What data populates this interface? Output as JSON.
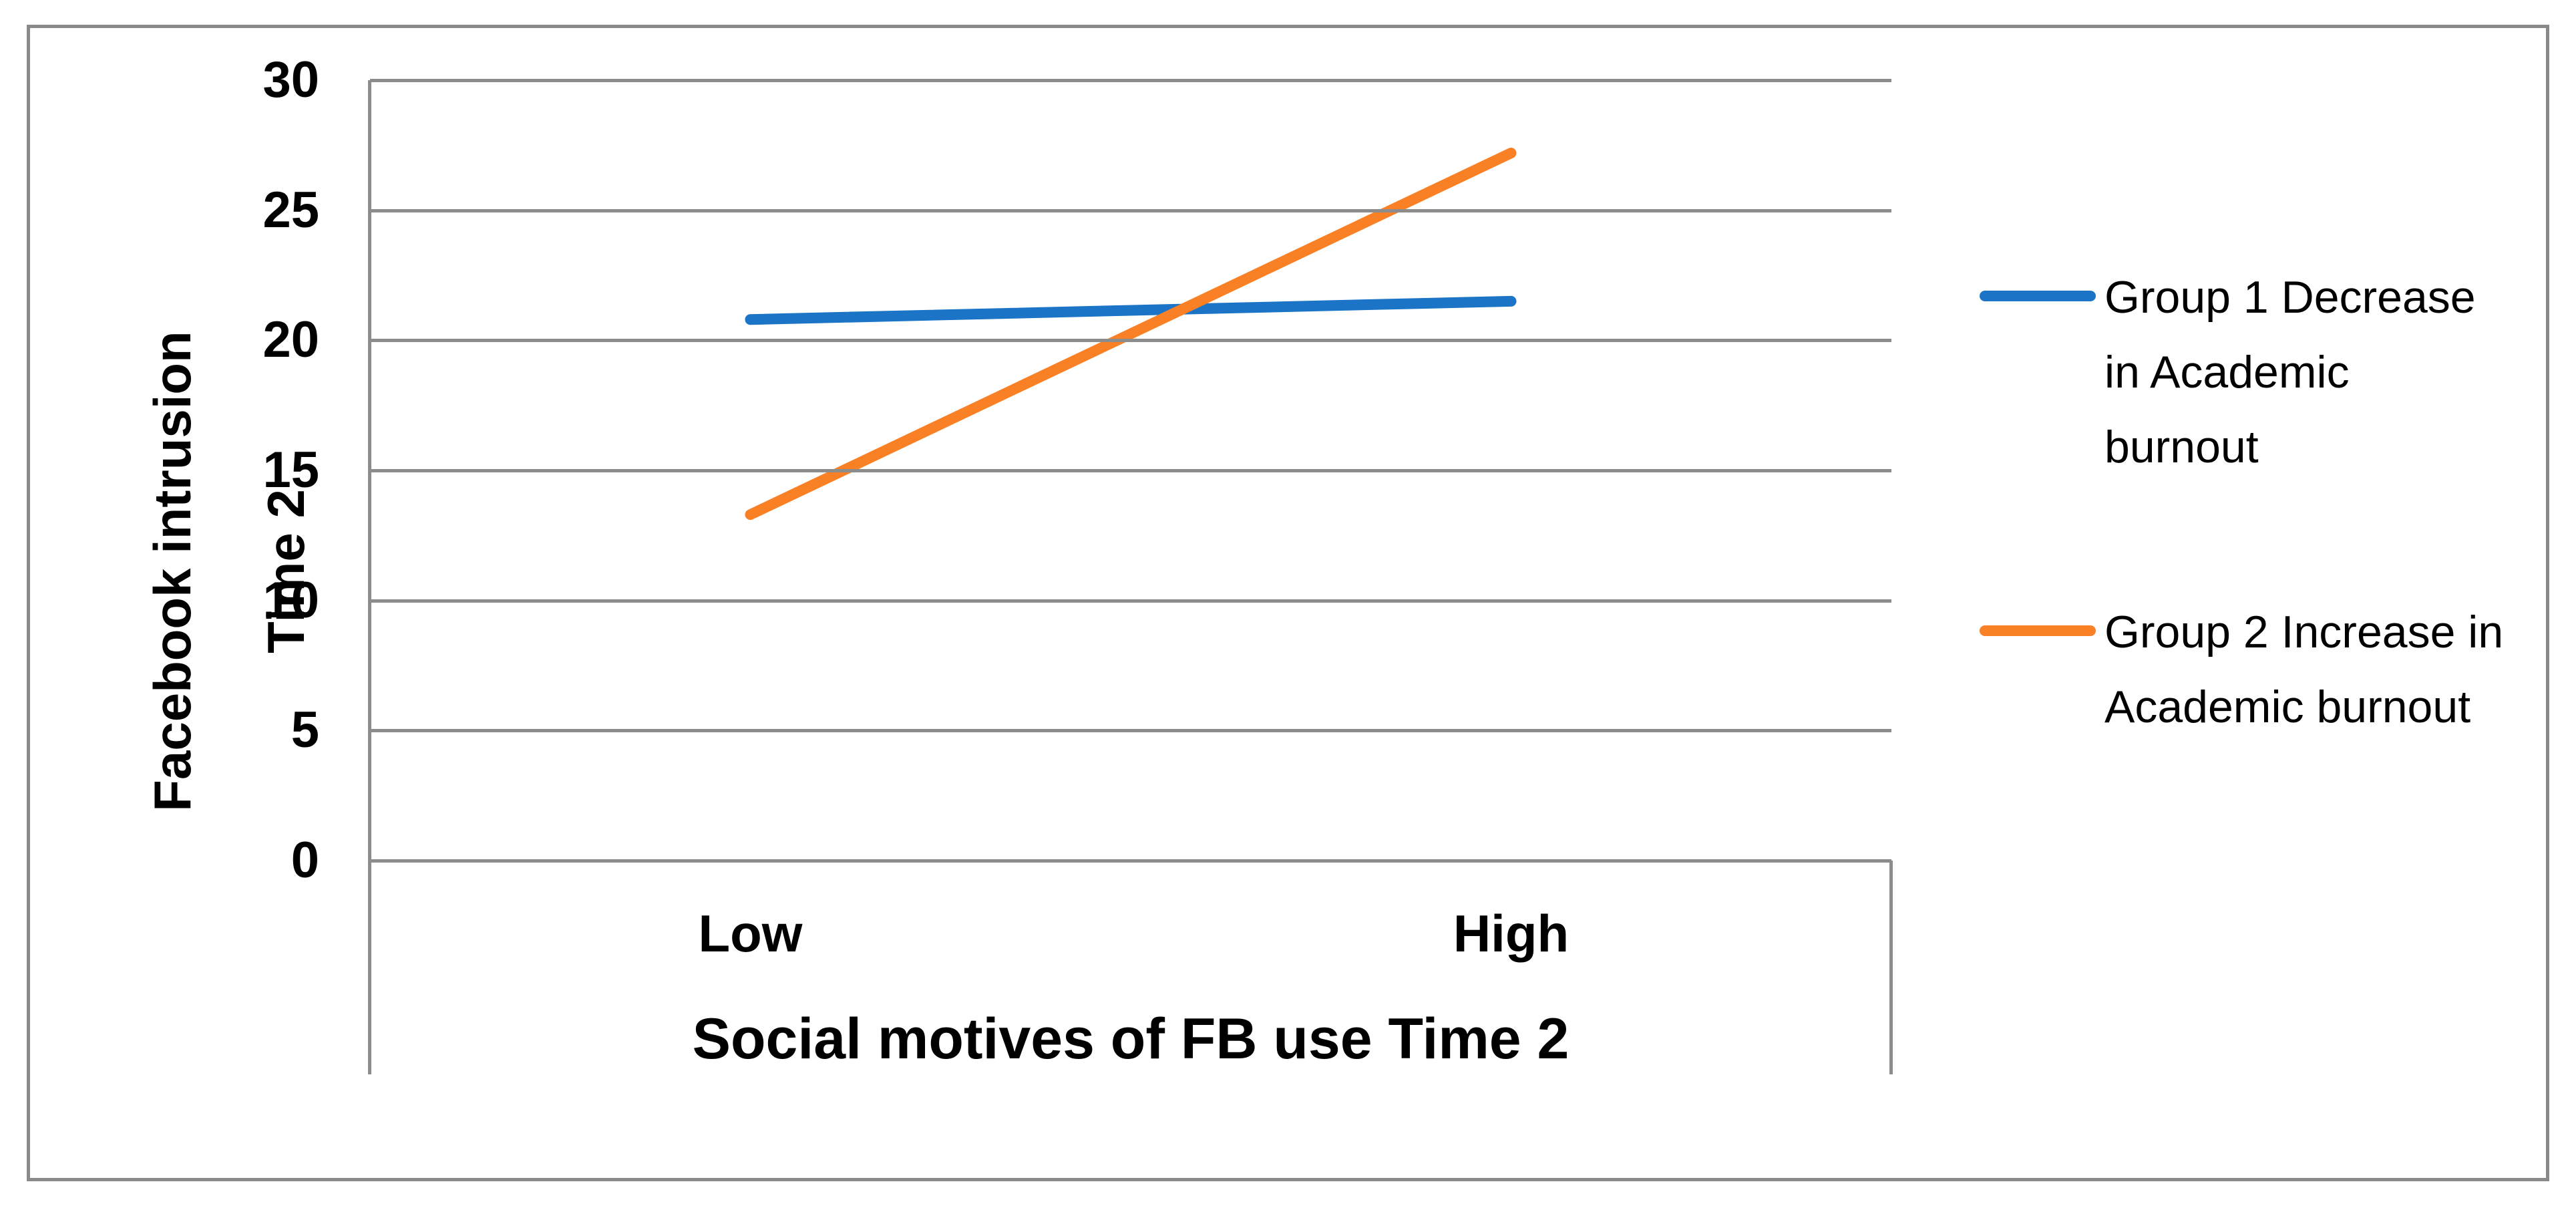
{
  "chart_data": {
    "type": "line",
    "categories": [
      "Low",
      "High"
    ],
    "series": [
      {
        "name": "Group 1 Decrease in Academic burnout",
        "values": [
          20.8,
          21.5
        ],
        "color": "#1B74C6"
      },
      {
        "name": "Group 2 Increase in Academic burnout",
        "values": [
          13.3,
          27.2
        ],
        "color": "#F98025"
      }
    ],
    "title": "",
    "xlabel": "Social motives of FB use Time 2",
    "ylabel": "Facebook intrusion Time 2",
    "ylabel_lines": [
      "Facebook intrusion",
      "Time 2"
    ],
    "ylim": [
      0,
      30
    ],
    "yticks": [
      0,
      5,
      10,
      15,
      20,
      25,
      30
    ],
    "grid": "horizontal",
    "legend_position": "right"
  },
  "colors": {
    "grid": "#8C8C8C",
    "axis": "#8C8C8C",
    "figure_border": "#898989",
    "text": "#000000"
  }
}
